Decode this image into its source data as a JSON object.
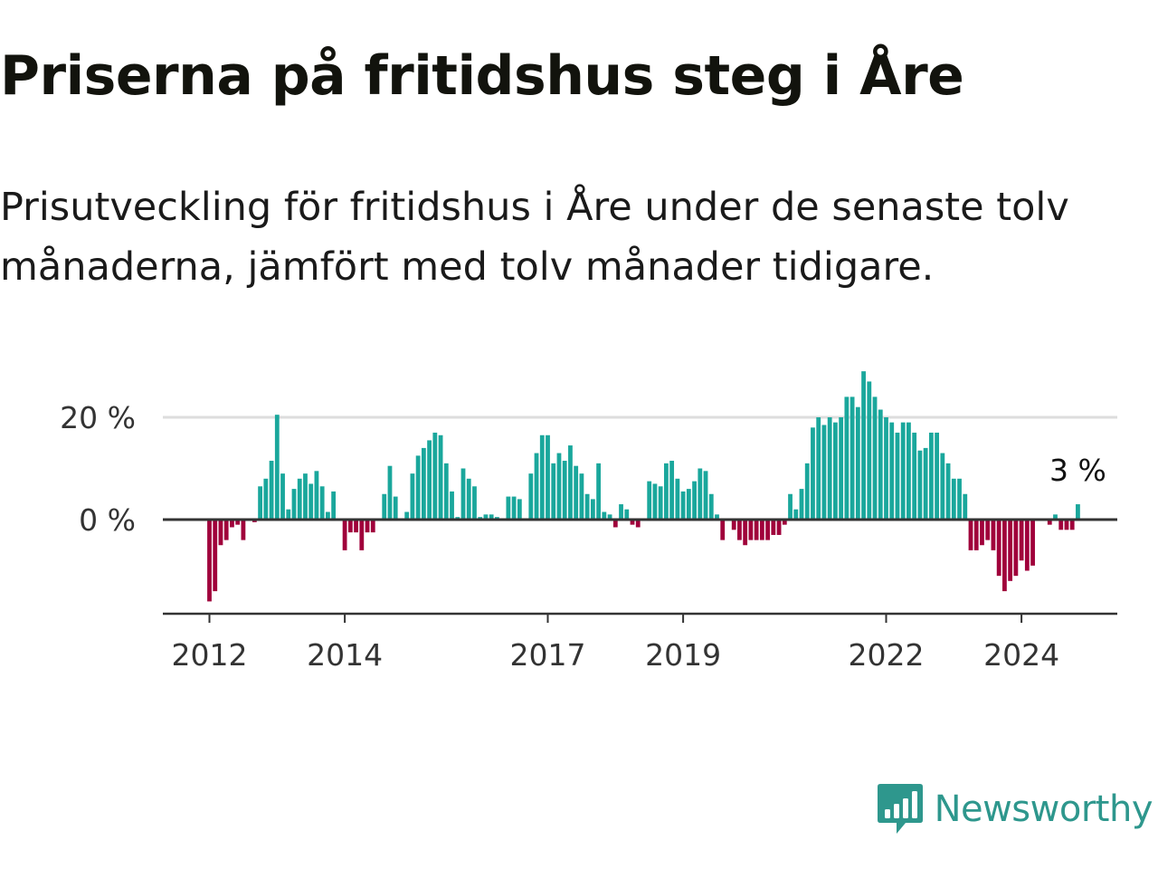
{
  "title": "Priserna på fritidshus steg i Åre",
  "subtitle": "Prisutveckling för fritidshus i Åre under de senaste tolv månaderna, jämfört med tolv månader tidigare.",
  "brand": {
    "name": "Newsworthy",
    "icon": "newsworthy-logo-icon"
  },
  "colors": {
    "positive": "#1aa79c",
    "negative": "#a0003b",
    "zero_line": "#333333",
    "grid": "#dddddd",
    "brand": "#2e978d"
  },
  "chart_data": {
    "type": "bar",
    "title": "Priserna på fritidshus steg i Åre",
    "xlabel": "",
    "ylabel": "",
    "ylim": [
      -18,
      32
    ],
    "y_ticks": [
      0,
      20
    ],
    "y_tick_labels": [
      "0 %",
      "20 %"
    ],
    "x_ticks": [
      {
        "year": 2012,
        "label": "2012"
      },
      {
        "year": 2014,
        "label": "2014"
      },
      {
        "year": 2017,
        "label": "2017"
      },
      {
        "year": 2019,
        "label": "2019"
      },
      {
        "year": 2022,
        "label": "2022"
      },
      {
        "year": 2024,
        "label": "2024"
      }
    ],
    "grid": "horizontal",
    "start_year": 2012,
    "frequency": "monthly",
    "annotation": {
      "text": "3 %",
      "value": 3
    },
    "values": [
      -16,
      -14,
      -5,
      -4,
      -1.5,
      -1,
      -4,
      0,
      -0.5,
      6.5,
      8,
      11.5,
      20.5,
      9,
      2,
      6,
      8,
      9,
      7,
      9.5,
      6.5,
      1.5,
      5.5,
      0,
      -6,
      -2.5,
      -2.5,
      -6,
      -2.5,
      -2.5,
      0,
      5,
      10.5,
      4.5,
      0,
      1.5,
      9,
      12.5,
      14,
      15.5,
      17,
      16.5,
      11,
      5.5,
      0.5,
      10,
      8,
      6.5,
      0.5,
      1,
      1,
      0.5,
      0,
      4.5,
      4.5,
      4,
      0,
      9,
      13,
      16.5,
      16.5,
      11,
      13,
      11.5,
      14.5,
      10.5,
      9,
      5,
      4,
      11,
      1.5,
      1,
      -1.5,
      3,
      2,
      -1,
      -1.5,
      0,
      7.5,
      7,
      6.5,
      11,
      11.5,
      8,
      5.5,
      6,
      7.5,
      10,
      9.5,
      5,
      1,
      -4,
      0,
      -2,
      -4,
      -5,
      -4,
      -4,
      -4,
      -4,
      -3,
      -3,
      -1,
      5,
      2,
      6,
      11,
      18,
      20,
      18.5,
      20,
      19,
      20,
      24,
      24,
      22,
      29,
      27,
      24,
      21.5,
      20,
      19,
      17,
      19,
      19,
      17,
      13.5,
      14,
      17,
      17,
      13,
      11,
      8,
      8,
      5,
      -6,
      -6,
      -5,
      -4,
      -6,
      -11,
      -14,
      -12,
      -11,
      -8,
      -10,
      -9,
      0,
      0,
      -1,
      1,
      -2,
      -2,
      -2,
      3
    ]
  }
}
